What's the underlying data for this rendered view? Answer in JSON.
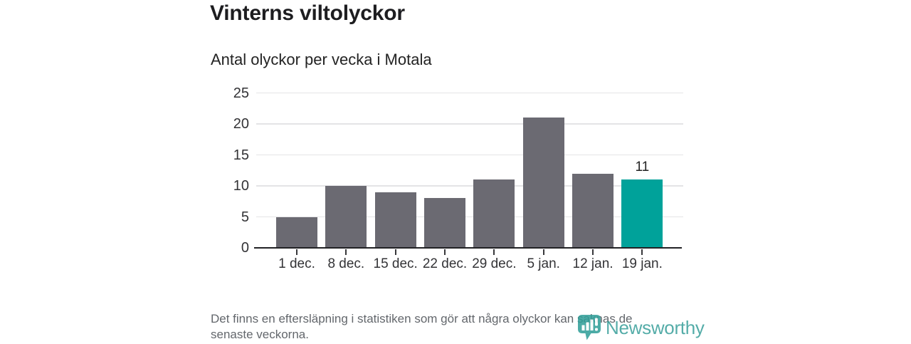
{
  "title": "Vinterns viltolyckor",
  "subtitle": "Antal olyckor per vecka i Motala",
  "chart_data": {
    "type": "bar",
    "title": "Vinterns viltolyckor",
    "subtitle": "Antal olyckor per vecka i Motala",
    "categories": [
      "1 dec.",
      "8 dec.",
      "15 dec.",
      "22 dec.",
      "29 dec.",
      "5 jan.",
      "12 jan.",
      "19 jan."
    ],
    "values": [
      5,
      10,
      9,
      8,
      11,
      21,
      12,
      11
    ],
    "xlabel": "",
    "ylabel": "",
    "ylim": [
      0,
      25
    ],
    "yticks": [
      0,
      5,
      10,
      15,
      20,
      25
    ],
    "grid": true,
    "legend": "none",
    "bar_color": "#6b6a72",
    "highlight_color": "#00a29a",
    "highlight_index": 7,
    "annotation": {
      "index": 7,
      "label": "11"
    }
  },
  "footnote": {
    "line1": "Det finns en eftersläpning i statistiken som gör att några olyckor kan saknas de",
    "line2": "senaste veckorna."
  },
  "logo": {
    "text": "Newsworthy",
    "color": "#399f9a",
    "icon": "newsworthy-marker-chart-icon"
  }
}
